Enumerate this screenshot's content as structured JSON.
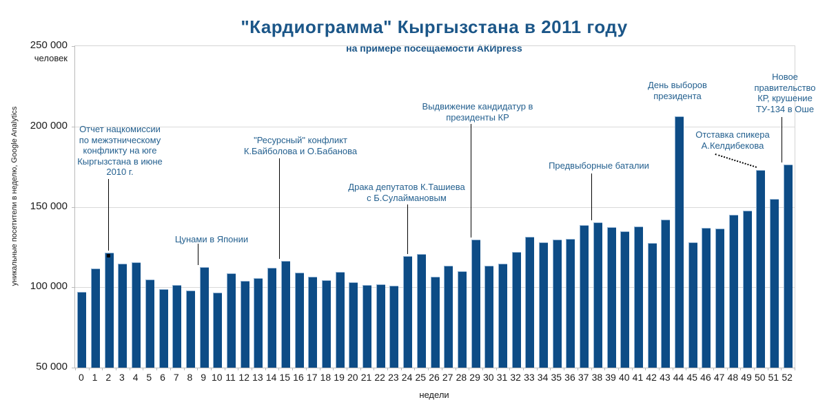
{
  "title": "\"Кардиограмма\" Кыргызстана в 2011 году",
  "subtitle": "на примере посещаемости АКИpress",
  "colors": {
    "bar": "#0d4c86",
    "title_text": "#1b5688",
    "annotation_text": "#24608f",
    "gridline": "#d9d9d9",
    "axis_text": "#1a1a1a"
  },
  "y_axis": {
    "unit_label": "человек",
    "axis_title": "уникальные посетители в неделю, Google Analytics",
    "tick_labels": [
      "250 000",
      "200 000",
      "150 000",
      "100 000",
      "50 000"
    ]
  },
  "x_axis": {
    "axis_title": "недели"
  },
  "chart_data": {
    "type": "bar",
    "title": "\"Кардиограмма\" Кыргызстана в 2011 году",
    "subtitle": "на примере посещаемости АКИpress",
    "xlabel": "недели",
    "ylabel": "уникальные посетители в неделю, Google Analytics",
    "ylim": [
      50000,
      250000
    ],
    "y_tick_step": 50000,
    "grid": "horizontal",
    "legend": "none",
    "categories": [
      0,
      1,
      2,
      3,
      4,
      5,
      6,
      7,
      8,
      9,
      10,
      11,
      12,
      13,
      14,
      15,
      16,
      17,
      18,
      19,
      20,
      21,
      22,
      23,
      24,
      25,
      26,
      27,
      28,
      29,
      30,
      31,
      32,
      33,
      34,
      35,
      36,
      37,
      38,
      39,
      40,
      41,
      42,
      43,
      44,
      45,
      46,
      47,
      48,
      49,
      50,
      51,
      52
    ],
    "values": [
      97000,
      111500,
      121500,
      114500,
      115500,
      105000,
      99000,
      101500,
      98000,
      112500,
      96500,
      108500,
      104000,
      105500,
      112000,
      116500,
      109000,
      106500,
      104500,
      109500,
      103000,
      101500,
      102000,
      101000,
      119500,
      120500,
      106500,
      113500,
      110000,
      129500,
      113500,
      114500,
      122000,
      131500,
      128000,
      129500,
      130000,
      138500,
      140500,
      137500,
      135000,
      138000,
      127500,
      142000,
      206500,
      128000,
      137000,
      136500,
      145000,
      147500,
      173000,
      155000,
      176500
    ],
    "annotations": [
      {
        "id": "natcommission-report",
        "week": 2,
        "text": "Отчет нацкомиссии\nпо межэтническому\nконфликту на юге\nКыргызстана в июне\n2010 г."
      },
      {
        "id": "tsunami-japan",
        "week": 9,
        "text": "Цунами в Японии"
      },
      {
        "id": "resource-conflict",
        "week": 15,
        "text": "\"Ресурсный\" конфликт\nК.Байболова и О.Бабанова"
      },
      {
        "id": "deputies-fight",
        "week": 24,
        "text": "Драка депутатов К.Ташиева\nс Б.Сулаймановым"
      },
      {
        "id": "candidates-nomination",
        "week": 29,
        "text": "Выдвижение кандидатур в\nпрезиденты КР"
      },
      {
        "id": "pre-election-battles",
        "week": 38,
        "text": "Предвыборные баталии"
      },
      {
        "id": "election-day",
        "week": 44,
        "text": "День выборов\nпрезидента"
      },
      {
        "id": "speaker-resignation",
        "week": 50,
        "text": "Отставка спикера\nА.Келдибекова"
      },
      {
        "id": "new-government",
        "week": 52,
        "text": "Новое\nправительство\nКР, крушение\nТУ-134 в Оше"
      }
    ]
  }
}
